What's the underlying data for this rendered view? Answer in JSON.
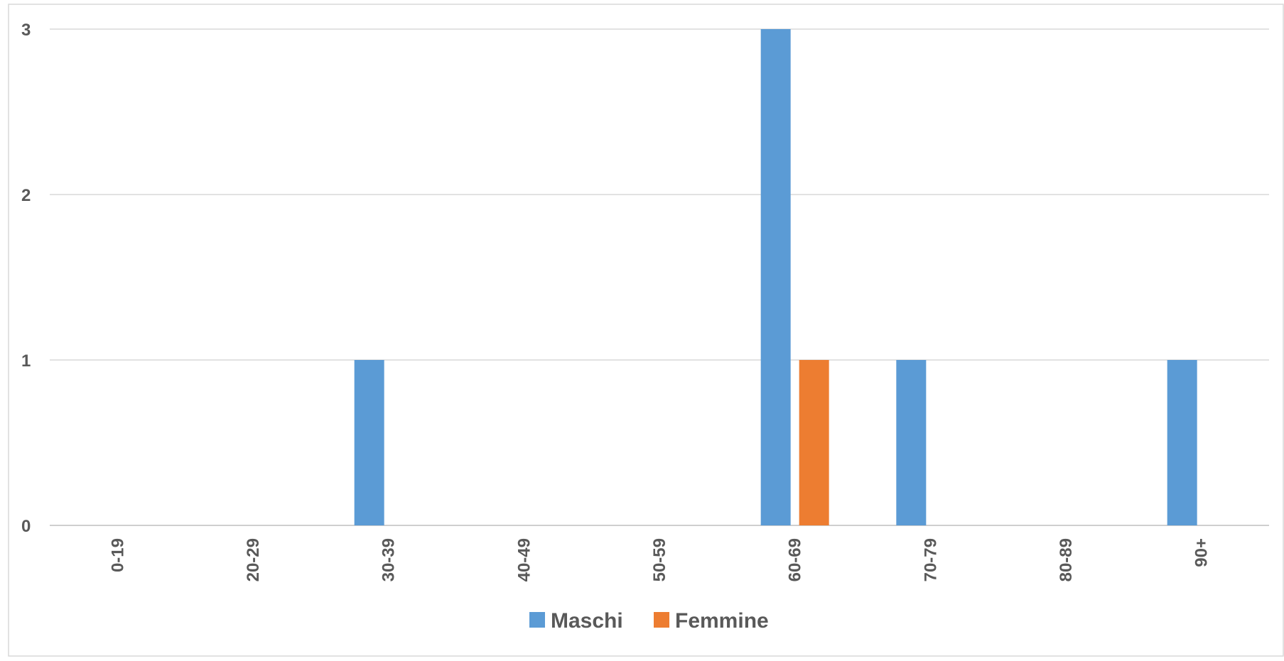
{
  "chart_data": {
    "type": "bar",
    "categories": [
      "0-19",
      "20-29",
      "30-39",
      "40-49",
      "50-59",
      "60-69",
      "70-79",
      "80-89",
      "90+"
    ],
    "series": [
      {
        "name": "Maschi",
        "color": "#5B9BD5",
        "values": [
          0,
          0,
          1,
          0,
          0,
          3,
          1,
          0,
          1
        ]
      },
      {
        "name": "Femmine",
        "color": "#ED7D31",
        "values": [
          0,
          0,
          0,
          0,
          0,
          1,
          0,
          0,
          0
        ]
      }
    ],
    "title": "",
    "xlabel": "",
    "ylabel": "",
    "ylim": [
      0,
      3
    ],
    "yticks": [
      "0",
      "1",
      "2",
      "3"
    ],
    "grid": true,
    "legend_position": "bottom"
  }
}
